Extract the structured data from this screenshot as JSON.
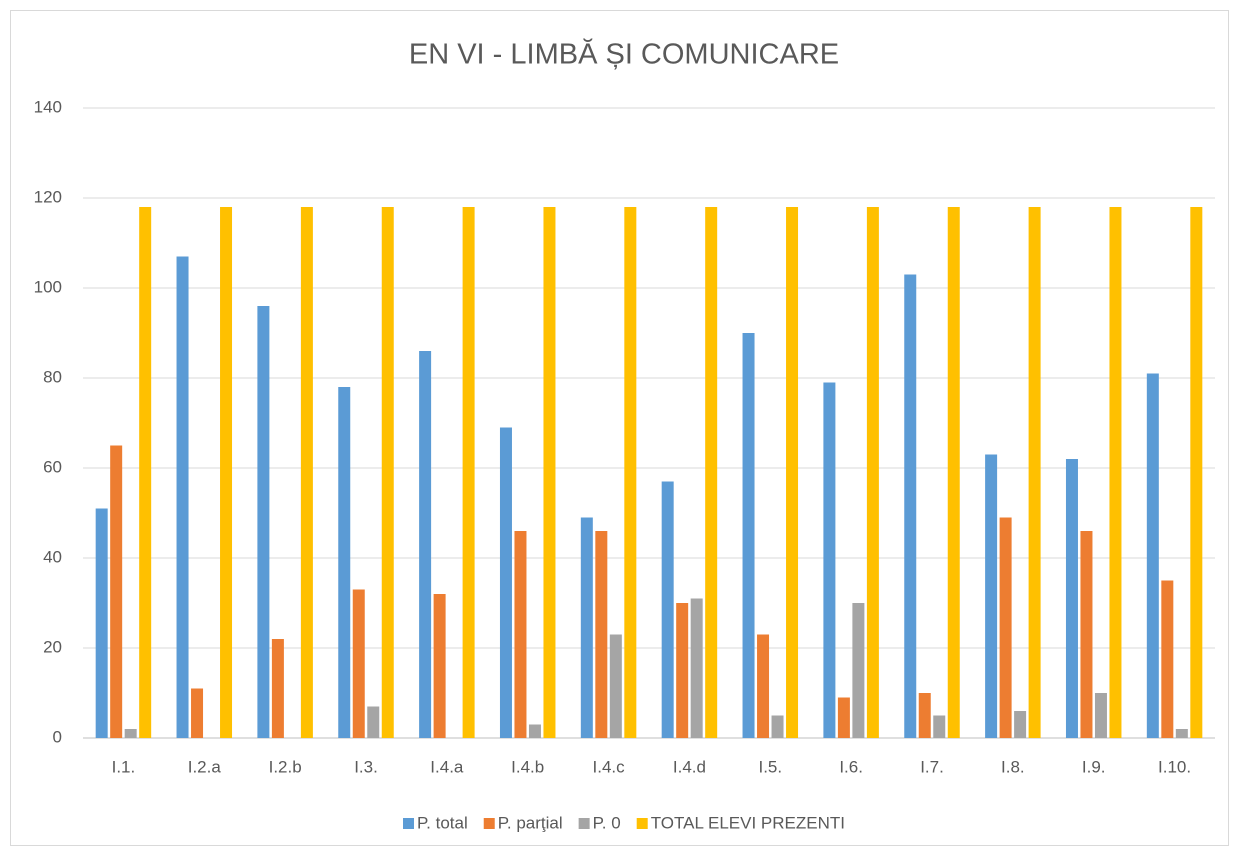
{
  "chart_data": {
    "type": "bar",
    "title": "EN VI - LIMBĂ ȘI COMUNICARE",
    "categories": [
      "I.1.",
      "I.2.a",
      "I.2.b",
      "I.3.",
      "I.4.a",
      "I.4.b",
      "I.4.c",
      "I.4.d",
      "I.5.",
      "I.6.",
      "I.7.",
      "I.8.",
      "I.9.",
      "I.10."
    ],
    "series": [
      {
        "name": "P. total",
        "color": "#5b9bd5",
        "values": [
          51,
          107,
          96,
          78,
          86,
          69,
          49,
          57,
          90,
          79,
          103,
          63,
          62,
          81
        ]
      },
      {
        "name": "P. parţial",
        "color": "#ed7d31",
        "values": [
          65,
          11,
          22,
          33,
          32,
          46,
          46,
          30,
          23,
          9,
          10,
          49,
          46,
          35
        ]
      },
      {
        "name": "P. 0",
        "color": "#a5a5a5",
        "values": [
          2,
          0,
          0,
          7,
          0,
          3,
          23,
          31,
          5,
          30,
          5,
          6,
          10,
          2
        ]
      },
      {
        "name": "TOTAL ELEVI PREZENTI",
        "color": "#ffc000",
        "values": [
          118,
          118,
          118,
          118,
          118,
          118,
          118,
          118,
          118,
          118,
          118,
          118,
          118,
          118
        ]
      }
    ],
    "ylim": [
      0,
      140
    ],
    "yticks": [
      0,
      20,
      40,
      60,
      80,
      100,
      120,
      140
    ],
    "grid": true,
    "legend": "bottom"
  }
}
